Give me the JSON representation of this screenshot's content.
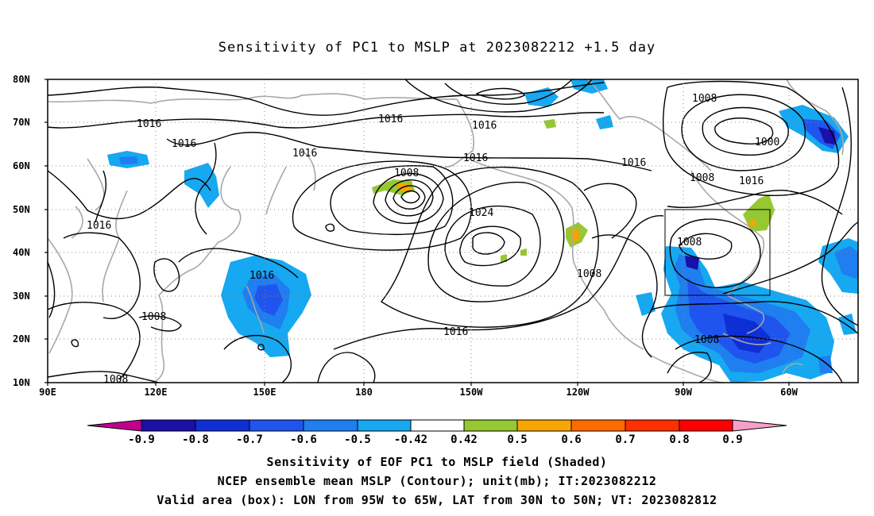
{
  "title": "Sensitivity of PC1 to MSLP at 2023082212 +1.5 day",
  "map": {
    "lon_labels": [
      "90E",
      "120E",
      "150E",
      "180",
      "150W",
      "120W",
      "90W",
      "60W"
    ],
    "lat_labels": [
      "80N",
      "70N",
      "60N",
      "50N",
      "40N",
      "30N",
      "20N",
      "10N"
    ],
    "lon_range": [
      "90E",
      "52W"
    ],
    "lat_range": [
      "10N",
      "80N"
    ],
    "grid": "dotted",
    "valid_box": {
      "lon": [
        "95W",
        "65W"
      ],
      "lat": [
        "30N",
        "50N"
      ]
    },
    "contour_labels": [
      "1016",
      "1016",
      "1016",
      "1016",
      "1016",
      "1016",
      "1016",
      "1016",
      "1016",
      "1016",
      "1024",
      "1008",
      "1008",
      "1008",
      "1008",
      "1008",
      "1008",
      "1008",
      "1000"
    ]
  },
  "colorbar": {
    "labels": [
      "-0.9",
      "-0.8",
      "-0.7",
      "-0.6",
      "-0.5",
      "-0.42",
      "0.42",
      "0.5",
      "0.6",
      "0.7",
      "0.8",
      "0.9"
    ],
    "colors": [
      "#c0008c",
      "#1a0fa6",
      "#0f2fd6",
      "#1f55ee",
      "#1f7ef0",
      "#16a8f0",
      "#00c6f4",
      "#ffffff",
      "#96c832",
      "#f7a500",
      "#ff6a00",
      "#ff2f00",
      "#ff0000",
      "#f6a0c8"
    ]
  },
  "captions": [
    "Sensitivity of EOF PC1 to MSLP field (Shaded)",
    "NCEP ensemble mean MSLP (Contour); unit(mb); IT:2023082212",
    "Valid area (box): LON from 95W to 65W, LAT from 30N to 50N; VT: 2023082812"
  ]
}
